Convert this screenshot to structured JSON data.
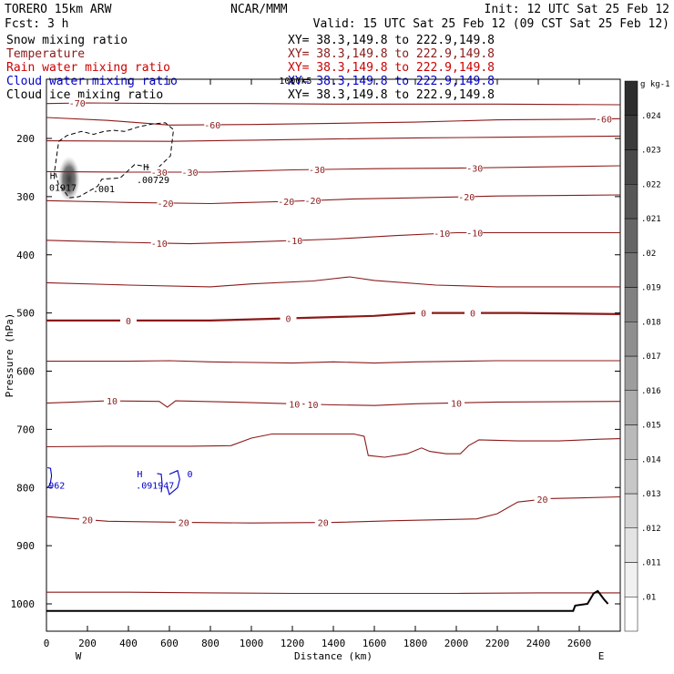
{
  "header": {
    "model": "TORERO  15km ARW",
    "center": "NCAR/MMM",
    "init": "Init: 12 UTC Sat 25 Feb 12",
    "fcst": "Fcst:    3 h",
    "valid": "Valid: 15 UTC Sat 25 Feb 12 (09 CST Sat 25 Feb 12)"
  },
  "colors": {
    "snow": "#000000",
    "temperature": "#8b1a1a",
    "rain": "#cc0000",
    "cloud_water": "#0000cc",
    "cloud_ice": "#000000",
    "ground": "#000000"
  },
  "chart_data": {
    "type": "cross-section",
    "xlabel": "Distance (km)",
    "ylabel": "Pressure (hPa)",
    "xlim": [
      0,
      2800
    ],
    "ylim": [
      1050,
      100
    ],
    "x_ticks": [
      "0",
      "200",
      "400",
      "600",
      "800",
      "1000",
      "1200",
      "1400",
      "1600",
      "1800",
      "2000",
      "2200",
      "2400",
      "2600"
    ],
    "y_ticks": [
      "200",
      "300",
      "400",
      "500",
      "600",
      "700",
      "800",
      "900",
      "1000"
    ],
    "endpoint_left": "W",
    "endpoint_right": "E",
    "fields": [
      {
        "name": "Snow mixing ratio",
        "xy": "XY=  38.3,149.8 to 222.9,149.8",
        "color_key": "snow"
      },
      {
        "name": "Temperature",
        "xy": "XY=  38.3,149.8 to 222.9,149.8",
        "color_key": "temperature"
      },
      {
        "name": "Rain water mixing ratio",
        "xy": "XY=  38.3,149.8 to 222.9,149.8",
        "color_key": "rain"
      },
      {
        "name": "Cloud water mixing ratio",
        "xy": "XY=  38.3,149.8 to 222.9,149.8",
        "color_key": "cloud_water"
      },
      {
        "name": "Cloud ice mixing ratio",
        "xy": "XY=  38.3,149.8 to 222.9,149.8",
        "color_key": "cloud_ice"
      }
    ],
    "colorbar": {
      "unit": "g kg-1",
      "levels": [
        ".01",
        ".011",
        ".012",
        ".013",
        ".014",
        ".015",
        ".016",
        ".017",
        ".018",
        ".019",
        ".02",
        ".021",
        ".022",
        ".023",
        ".024"
      ]
    },
    "temperature_isotherms": [
      {
        "value": -70,
        "points": [
          [
            0,
            140
          ],
          [
            200,
            139
          ],
          [
            600,
            140
          ],
          [
            1000,
            140
          ],
          [
            1400,
            141
          ],
          [
            1800,
            141
          ],
          [
            2200,
            141
          ],
          [
            2800,
            142
          ]
        ],
        "labels": [
          {
            "text": "-70",
            "x": 150
          }
        ]
      },
      {
        "value": -60,
        "points": [
          [
            0,
            164
          ],
          [
            300,
            169
          ],
          [
            600,
            177
          ],
          [
            1000,
            176
          ],
          [
            1400,
            174
          ],
          [
            1800,
            172
          ],
          [
            2200,
            168
          ],
          [
            2600,
            167
          ],
          [
            2800,
            166
          ]
        ],
        "labels": [
          {
            "text": "-60",
            "x": 810
          },
          {
            "text": "-60",
            "x": 2720
          }
        ]
      },
      {
        "value": -50,
        "points": [
          [
            0,
            204
          ],
          [
            600,
            205
          ],
          [
            1000,
            203
          ],
          [
            1400,
            201
          ],
          [
            1800,
            199
          ],
          [
            2200,
            198
          ],
          [
            2800,
            196
          ]
        ],
        "labels": []
      },
      {
        "value": -30,
        "points": [
          [
            0,
            257
          ],
          [
            400,
            258
          ],
          [
            800,
            258
          ],
          [
            1200,
            254
          ],
          [
            1600,
            252
          ],
          [
            2000,
            251
          ],
          [
            2400,
            249
          ],
          [
            2800,
            247
          ]
        ],
        "labels": [
          {
            "text": "-30",
            "x": 550
          },
          {
            "text": "-30",
            "x": 700
          },
          {
            "text": "-30",
            "x": 1320
          },
          {
            "text": "-30",
            "x": 2090
          }
        ]
      },
      {
        "value": -20,
        "points": [
          [
            0,
            307
          ],
          [
            400,
            310
          ],
          [
            800,
            312
          ],
          [
            1200,
            308
          ],
          [
            1500,
            304
          ],
          [
            1800,
            302
          ],
          [
            2200,
            299
          ],
          [
            2800,
            297
          ]
        ],
        "labels": [
          {
            "text": "-20",
            "x": 580
          },
          {
            "text": "-20",
            "x": 1170
          },
          {
            "text": "-20",
            "x": 1300
          },
          {
            "text": "-20",
            "x": 2050
          }
        ]
      },
      {
        "value": -10,
        "points": [
          [
            0,
            375
          ],
          [
            300,
            378
          ],
          [
            700,
            381
          ],
          [
            1000,
            378
          ],
          [
            1400,
            373
          ],
          [
            1700,
            367
          ],
          [
            2000,
            362
          ],
          [
            2400,
            362
          ],
          [
            2800,
            362
          ]
        ],
        "labels": [
          {
            "text": "-10",
            "x": 550
          },
          {
            "text": "-10",
            "x": 1210
          },
          {
            "text": "-10",
            "x": 1930
          },
          {
            "text": "-10",
            "x": 2090
          }
        ]
      },
      {
        "value": -5,
        "points": [
          [
            0,
            448
          ],
          [
            400,
            452
          ],
          [
            800,
            455
          ],
          [
            1000,
            450
          ],
          [
            1300,
            445
          ],
          [
            1480,
            438
          ],
          [
            1600,
            444
          ],
          [
            1900,
            452
          ],
          [
            2200,
            455
          ],
          [
            2800,
            455
          ]
        ],
        "labels": []
      },
      {
        "value": 0,
        "points": [
          [
            0,
            513
          ],
          [
            400,
            513
          ],
          [
            800,
            513
          ],
          [
            1200,
            509
          ],
          [
            1600,
            505
          ],
          [
            1800,
            500
          ],
          [
            2000,
            500
          ],
          [
            2300,
            500
          ],
          [
            2800,
            502
          ]
        ],
        "labels": [
          {
            "text": "0",
            "x": 400
          },
          {
            "text": "0",
            "x": 1180
          },
          {
            "text": "0",
            "x": 1840
          },
          {
            "text": "0",
            "x": 2080
          }
        ]
      },
      {
        "value": 5,
        "points": [
          [
            0,
            583
          ],
          [
            400,
            583
          ],
          [
            600,
            582
          ],
          [
            800,
            584
          ],
          [
            1200,
            586
          ],
          [
            1400,
            584
          ],
          [
            1600,
            586
          ],
          [
            1800,
            584
          ],
          [
            2200,
            582
          ],
          [
            2800,
            582
          ]
        ],
        "labels": []
      },
      {
        "value": 10,
        "points": [
          [
            0,
            655
          ],
          [
            300,
            651
          ],
          [
            550,
            652
          ],
          [
            590,
            662
          ],
          [
            630,
            651
          ],
          [
            900,
            653
          ],
          [
            1200,
            656
          ],
          [
            1400,
            658
          ],
          [
            1600,
            659
          ],
          [
            1800,
            656
          ],
          [
            2200,
            653
          ],
          [
            2800,
            652
          ]
        ],
        "labels": [
          {
            "text": "10",
            "x": 320
          },
          {
            "text": "10",
            "x": 1210
          },
          {
            "text": "10",
            "x": 1300
          },
          {
            "text": "10",
            "x": 2000
          }
        ]
      },
      {
        "value": 15,
        "points": [
          [
            0,
            730
          ],
          [
            300,
            729
          ],
          [
            700,
            729
          ],
          [
            900,
            728
          ],
          [
            1000,
            715
          ],
          [
            1100,
            708
          ],
          [
            1300,
            708
          ],
          [
            1500,
            708
          ],
          [
            1550,
            712
          ],
          [
            1570,
            745
          ],
          [
            1650,
            748
          ],
          [
            1760,
            742
          ],
          [
            1830,
            732
          ],
          [
            1870,
            738
          ],
          [
            1950,
            742
          ],
          [
            2020,
            742
          ],
          [
            2060,
            728
          ],
          [
            2110,
            718
          ],
          [
            2300,
            720
          ],
          [
            2500,
            720
          ],
          [
            2700,
            717
          ],
          [
            2800,
            716
          ]
        ],
        "labels": []
      },
      {
        "value": 20,
        "points": [
          [
            0,
            850
          ],
          [
            300,
            858
          ],
          [
            700,
            860
          ],
          [
            1000,
            861
          ],
          [
            1400,
            860
          ],
          [
            1700,
            857
          ],
          [
            2100,
            854
          ],
          [
            2200,
            845
          ],
          [
            2300,
            825
          ],
          [
            2450,
            819
          ],
          [
            2600,
            818
          ],
          [
            2800,
            816
          ]
        ],
        "labels": [
          {
            "text": "20",
            "x": 200
          },
          {
            "text": "20",
            "x": 670
          },
          {
            "text": "20",
            "x": 1350
          },
          {
            "text": "20",
            "x": 2420
          }
        ]
      },
      {
        "value": 25,
        "points": [
          [
            0,
            980
          ],
          [
            400,
            980
          ],
          [
            800,
            981
          ],
          [
            1200,
            982
          ],
          [
            1600,
            982
          ],
          [
            2000,
            982
          ],
          [
            2400,
            981
          ],
          [
            2800,
            981
          ]
        ],
        "labels": []
      }
    ],
    "ground_surface": [
      [
        0,
        1012
      ],
      [
        2300,
        1012
      ],
      [
        2570,
        1012
      ],
      [
        2580,
        1003
      ],
      [
        2640,
        1000
      ],
      [
        2670,
        982
      ],
      [
        2690,
        978
      ],
      [
        2720,
        992
      ],
      [
        2740,
        1000
      ]
    ],
    "cloud_ice_contours": [
      {
        "type": "dashed",
        "value": ".001",
        "points": [
          [
            40,
            255
          ],
          [
            60,
            205
          ],
          [
            100,
            195
          ],
          [
            170,
            188
          ],
          [
            230,
            193
          ],
          [
            280,
            188
          ],
          [
            330,
            186
          ],
          [
            380,
            188
          ],
          [
            450,
            180
          ],
          [
            520,
            175
          ],
          [
            580,
            173
          ],
          [
            620,
            185
          ],
          [
            605,
            230
          ],
          [
            540,
            252
          ],
          [
            430,
            245
          ],
          [
            360,
            268
          ],
          [
            270,
            270
          ],
          [
            250,
            282
          ],
          [
            160,
            300
          ],
          [
            110,
            302
          ],
          [
            90,
            292
          ],
          [
            60,
            280
          ]
        ]
      }
    ],
    "cloud_ice_maximum": {
      "x": 110,
      "pmin": 240,
      "pmax": 300,
      "value": ".024"
    },
    "cloud_water_contours": [
      {
        "points": [
          [
            600,
            777
          ],
          [
            640,
            771
          ],
          [
            650,
            786
          ],
          [
            640,
            800
          ],
          [
            600,
            812
          ],
          [
            590,
            800
          ]
        ]
      },
      {
        "points": [
          [
            540,
            776
          ],
          [
            560,
            777
          ],
          [
            565,
            795
          ],
          [
            560,
            808
          ]
        ]
      },
      {
        "points": [
          [
            5,
            766
          ],
          [
            20,
            767
          ],
          [
            25,
            780
          ],
          [
            18,
            795
          ],
          [
            5,
            800
          ]
        ]
      }
    ],
    "annotations": [
      {
        "text": "H",
        "x": 30,
        "p": 270,
        "color_key": "cloud_ice"
      },
      {
        "text": "01917",
        "x": 80,
        "p": 290,
        "color_key": "cloud_ice"
      },
      {
        "text": "H",
        "x": 485,
        "p": 255,
        "color_key": "cloud_ice"
      },
      {
        "text": ".00729",
        "x": 520,
        "p": 277,
        "color_key": "cloud_ice"
      },
      {
        "text": ".001",
        "x": 280,
        "p": 292,
        "color_key": "cloud_ice"
      },
      {
        "text": "H",
        "x": 455,
        "p": 782,
        "color_key": "cloud_water"
      },
      {
        "text": ".091947",
        "x": 530,
        "p": 802,
        "color_key": "cloud_water"
      },
      {
        "text": "962",
        "x": 50,
        "p": 802,
        "color_key": "cloud_water"
      },
      {
        "text": "0",
        "x": 700,
        "p": 782,
        "color_key": "cloud_water"
      },
      {
        "text": "1000k5",
        "x": 1215,
        "p": 106,
        "color_key": "cloud_ice"
      }
    ]
  }
}
